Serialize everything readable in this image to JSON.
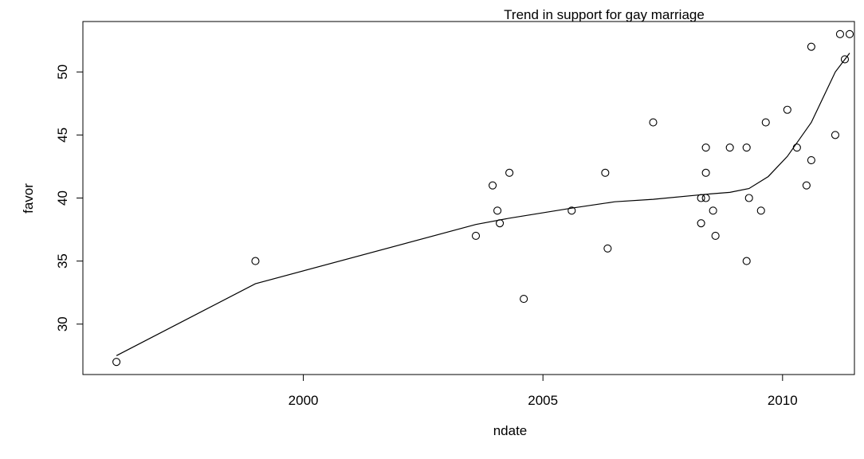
{
  "chart_data": {
    "type": "scatter",
    "title": "Trend in support for gay marriage",
    "xlabel": "ndate",
    "ylabel": "favor",
    "xlim": [
      1995.4,
      2011.5
    ],
    "ylim": [
      26.0,
      54.0
    ],
    "x_ticks": [
      2000,
      2005,
      2010
    ],
    "y_ticks": [
      30,
      35,
      40,
      45,
      50
    ],
    "grid": false,
    "legend": "none",
    "point_color": "#000000",
    "line_color": "#000000",
    "points": [
      {
        "x": 1996.1,
        "y": 27
      },
      {
        "x": 1999.0,
        "y": 35
      },
      {
        "x": 2003.6,
        "y": 37
      },
      {
        "x": 2003.95,
        "y": 41
      },
      {
        "x": 2004.05,
        "y": 39
      },
      {
        "x": 2004.1,
        "y": 38
      },
      {
        "x": 2004.3,
        "y": 42
      },
      {
        "x": 2004.6,
        "y": 32
      },
      {
        "x": 2005.6,
        "y": 39
      },
      {
        "x": 2006.3,
        "y": 42
      },
      {
        "x": 2006.35,
        "y": 36
      },
      {
        "x": 2007.3,
        "y": 46
      },
      {
        "x": 2008.3,
        "y": 40
      },
      {
        "x": 2008.3,
        "y": 38
      },
      {
        "x": 2008.4,
        "y": 44
      },
      {
        "x": 2008.4,
        "y": 42
      },
      {
        "x": 2008.4,
        "y": 40
      },
      {
        "x": 2008.55,
        "y": 39
      },
      {
        "x": 2008.6,
        "y": 37
      },
      {
        "x": 2008.9,
        "y": 44
      },
      {
        "x": 2009.25,
        "y": 44
      },
      {
        "x": 2009.25,
        "y": 35
      },
      {
        "x": 2009.3,
        "y": 40
      },
      {
        "x": 2009.55,
        "y": 39
      },
      {
        "x": 2009.65,
        "y": 46
      },
      {
        "x": 2010.1,
        "y": 47
      },
      {
        "x": 2010.3,
        "y": 44
      },
      {
        "x": 2010.5,
        "y": 41
      },
      {
        "x": 2010.6,
        "y": 52
      },
      {
        "x": 2010.6,
        "y": 43
      },
      {
        "x": 2011.1,
        "y": 45
      },
      {
        "x": 2011.2,
        "y": 53
      },
      {
        "x": 2011.3,
        "y": 51
      },
      {
        "x": 2011.4,
        "y": 53
      }
    ],
    "trend_line": [
      {
        "x": 1996.1,
        "y": 27.5
      },
      {
        "x": 1999.0,
        "y": 33.2
      },
      {
        "x": 2003.6,
        "y": 37.9
      },
      {
        "x": 2004.3,
        "y": 38.4
      },
      {
        "x": 2005.6,
        "y": 39.2
      },
      {
        "x": 2006.5,
        "y": 39.7
      },
      {
        "x": 2007.3,
        "y": 39.9
      },
      {
        "x": 2008.4,
        "y": 40.3
      },
      {
        "x": 2008.9,
        "y": 40.45
      },
      {
        "x": 2009.3,
        "y": 40.75
      },
      {
        "x": 2009.7,
        "y": 41.7
      },
      {
        "x": 2010.1,
        "y": 43.3
      },
      {
        "x": 2010.6,
        "y": 46.0
      },
      {
        "x": 2011.1,
        "y": 50.0
      },
      {
        "x": 2011.3,
        "y": 51.0
      },
      {
        "x": 2011.4,
        "y": 51.5
      }
    ]
  }
}
